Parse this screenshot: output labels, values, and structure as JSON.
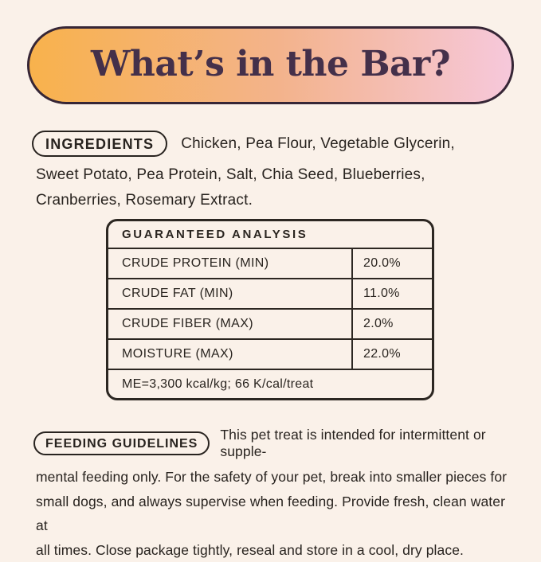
{
  "page": {
    "background": "#FAF1E9",
    "text_color": "#28231F"
  },
  "header": {
    "title": "What’s in the Bar?",
    "text_color": "#44304A",
    "border_color": "#362636",
    "gradient_left": "#F8B24C",
    "gradient_mid": "#F3B38C",
    "gradient_right": "#F6C8DB"
  },
  "ingredients": {
    "label": "INGREDIENTS",
    "lines": [
      "Chicken, Pea Flour, Vegetable Glycerin,",
      "Sweet Potato, Pea Protein, Salt, Chia Seed, Blueberries,",
      "Cranberries, Rosemary Extract."
    ]
  },
  "analysis_table": {
    "title": "GUARANTEED ANALYSIS",
    "line_color": "#2C2722",
    "rows": [
      {
        "label": "CRUDE PROTEIN (MIN)",
        "value": "20.0%"
      },
      {
        "label": "CRUDE FAT (MIN)",
        "value": "11.0%"
      },
      {
        "label": "CRUDE FIBER (MAX)",
        "value": "2.0%"
      },
      {
        "label": "MOISTURE (MAX)",
        "value": "22.0%"
      }
    ],
    "footnote": "ME=3,300 kcal/kg; 66 K/cal/treat"
  },
  "feeding": {
    "label": "FEEDING GUIDELINES",
    "lines": [
      "This pet treat is intended for intermittent or supple-",
      "mental feeding only. For the safety of your pet, break into smaller pieces for",
      "small dogs, and always supervise when feeding. Provide fresh, clean water at",
      "all times. Close package tightly, reseal and store in a cool, dry place."
    ]
  }
}
